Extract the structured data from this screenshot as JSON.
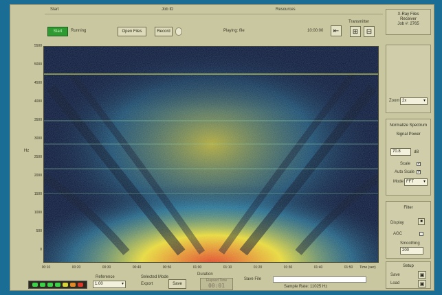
{
  "topbar": {
    "start": "Start",
    "job": "Job ID",
    "resources": "Resources"
  },
  "toolbar": {
    "start_label": "Start",
    "status_label": "Running",
    "open_file_label": "Open Files",
    "record_label": "Record",
    "playback_text": "Playing: file",
    "time_text": "10:00:00",
    "transmitter_label": "Transmitter"
  },
  "plot": {
    "y_ticks": [
      "5500",
      "5000",
      "4500",
      "4000",
      "3500",
      "3000",
      "2500",
      "2000",
      "1500",
      "1000",
      "500",
      "0"
    ],
    "x_ticks": [
      "00:10",
      "00:20",
      "00:30",
      "00:40",
      "00:50",
      "01:00",
      "01:10",
      "01:20",
      "01:30",
      "01:40",
      "01:50"
    ],
    "x_end_label": "Time (sec)",
    "y_label": "Hz",
    "colors": {
      "low": "#0a1840",
      "mid": "#2c8cb4",
      "high": "#e6d83c",
      "peak": "#e0442a"
    }
  },
  "right_panel": {
    "info_title": "X-Ray Files",
    "info_line1": "Receiver",
    "info_line2": "Job #: 2765",
    "zoom_label": "Zoom",
    "zoom_value": "2x",
    "spectrum_title": "Normalize Spectrum",
    "spectrum_sub": "Signal Power",
    "power_value": "70.8",
    "power_unit": "dB",
    "scale_label": "Scale",
    "auto_label": "Auto Scale",
    "mode_label": "Mode",
    "mode_value": "FFT",
    "filter_title": "Filter",
    "display_label": "Display",
    "agc_label": "AGC",
    "smooth_label": "Smoothing",
    "smooth_value": "200",
    "setup_title": "Setup",
    "save_label": "Save",
    "load_label": "Load"
  },
  "bottom": {
    "reference_label": "Reference",
    "reference_value": "1.00",
    "selected_label": "Selected Mode",
    "selected_value": "Export",
    "save_label": "Save",
    "duration_label": "Duration",
    "elapsed_label": "Elapsed Time",
    "elapsed_value": "00:01",
    "file_label": "Save File",
    "file_info": "Sample Rate: 11025 Hz",
    "led_colors": [
      "#3bd24a",
      "#3bd24a",
      "#3bd24a",
      "#3bd24a",
      "#d7d23a",
      "#e08a2a",
      "#d93a2a"
    ]
  }
}
